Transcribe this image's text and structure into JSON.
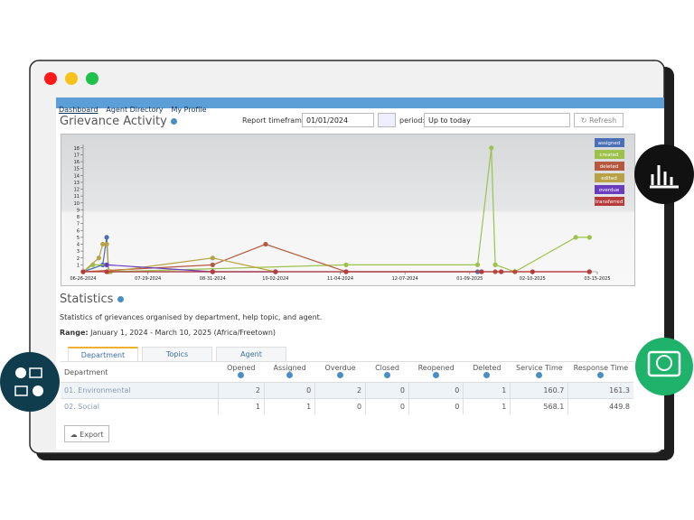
{
  "nav": {
    "links": [
      "Dashboard",
      "Agent Directory",
      "My Profile"
    ]
  },
  "header": {
    "title": "Grievance Activity",
    "timeframe_label": "Report timeframe:",
    "timeframe_value": "01/01/2024",
    "period_label": "period:",
    "period_value": "Up to today",
    "refresh": "Refresh"
  },
  "chart_data": {
    "type": "line",
    "xlim": [
      "06-26-2024",
      "03-15-2025"
    ],
    "xticks": [
      "06-26-2024",
      "07-29-2024",
      "08-31-2024",
      "10-02-2024",
      "11-04-2024",
      "12-07-2024",
      "01-09-2025",
      "02-10-2025",
      "03-15-2025"
    ],
    "ylim": [
      0,
      18.5
    ],
    "yticks": [
      1,
      2,
      3,
      4,
      5,
      6,
      7,
      8,
      9,
      10,
      11,
      12,
      13,
      14,
      15,
      16,
      17,
      18
    ],
    "legend": "top-right",
    "series": [
      {
        "name": "assigned",
        "color": "#4a6fb5",
        "x": [
          "06-26-2024",
          "07-06-2024",
          "07-08-2024",
          "07-09-2024",
          "01-13-2025"
        ],
        "values": [
          0,
          1,
          5,
          0,
          0
        ]
      },
      {
        "name": "created",
        "color": "#9dc24c",
        "x": [
          "06-26-2024",
          "07-01-2024",
          "07-08-2024",
          "07-10-2024",
          "11-07-2024",
          "01-13-2025",
          "01-20-2025",
          "01-22-2025",
          "02-01-2025",
          "03-04-2025",
          "03-11-2025"
        ],
        "values": [
          0,
          1,
          1,
          0,
          1,
          1,
          18,
          1,
          0,
          5,
          5
        ]
      },
      {
        "name": "deleted",
        "color": "#b5593e",
        "x": [
          "06-26-2024",
          "08-31-2024",
          "09-27-2024",
          "11-07-2024",
          "01-22-2025",
          "02-01-2025",
          "03-11-2025"
        ],
        "values": [
          0,
          1,
          4,
          0,
          0,
          0,
          0
        ]
      },
      {
        "name": "edited",
        "color": "#b9a245",
        "x": [
          "06-26-2024",
          "07-04-2024",
          "07-06-2024",
          "07-08-2024",
          "07-09-2024",
          "08-31-2024",
          "10-02-2024"
        ],
        "values": [
          0,
          2,
          4,
          4,
          0,
          2,
          0
        ]
      },
      {
        "name": "overdue",
        "color": "#6a3dbf",
        "x": [
          "07-08-2024",
          "08-31-2024",
          "10-02-2024"
        ],
        "values": [
          1,
          0,
          0
        ]
      },
      {
        "name": "transferred",
        "color": "#b83b3b",
        "x": [
          "06-26-2024",
          "07-08-2024",
          "08-31-2024",
          "10-02-2024",
          "11-07-2024",
          "01-15-2025",
          "01-25-2025",
          "02-10-2025",
          "03-11-2025"
        ],
        "values": [
          0,
          0,
          0,
          0,
          0,
          0,
          0,
          0,
          0
        ]
      }
    ]
  },
  "statistics": {
    "title": "Statistics",
    "description": "Statistics of grievances organised by department, help topic, and agent.",
    "range_label": "Range:",
    "range_value": "January 1, 2024 - March 10, 2025 (Africa/Freetown)",
    "tabs": [
      "Department",
      "Topics",
      "Agent"
    ],
    "table": {
      "columns": [
        "Department",
        "Opened",
        "Assigned",
        "Overdue",
        "Closed",
        "Reopened",
        "Deleted",
        "Service Time",
        "Response Time"
      ],
      "rows": [
        [
          "01. Environmental",
          2,
          0,
          2,
          0,
          0,
          1,
          160.7,
          161.3
        ],
        [
          "02. Social",
          1,
          1,
          0,
          0,
          0,
          1,
          568.1,
          449.8
        ]
      ]
    },
    "export": "Export"
  }
}
